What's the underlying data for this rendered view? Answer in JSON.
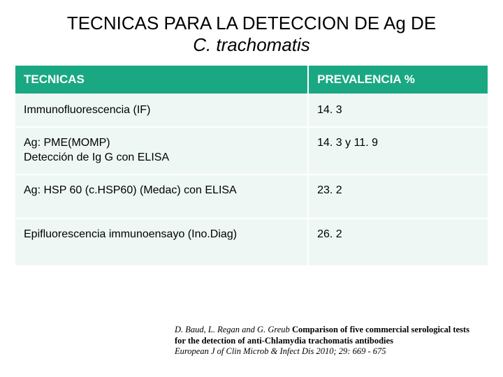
{
  "title_line1": "TECNICAS PARA LA DETECCION DE Ag DE",
  "title_line2": "C. trachomatis",
  "table": {
    "columns": [
      "TECNICAS",
      "PREVALENCIA %"
    ],
    "col_widths_pct": [
      62,
      38
    ],
    "header_bg": "#1aa883",
    "header_text": "#ffffff",
    "cell_bg": "#eef7f4",
    "cell_text": "#000000",
    "border_color": "#ffffff",
    "header_fontsize": 17,
    "cell_fontsize": 16,
    "rows": [
      {
        "tecnica": "Immunofluorescencia (IF)",
        "prevalencia": "14. 3"
      },
      {
        "tecnica": "Ag: PME(MOMP)\nDetección de Ig G con  ELISA",
        "prevalencia": "14. 3  y 11. 9"
      },
      {
        "tecnica": "Ag: HSP 60 (c.HSP60) (Medac) con ELISA",
        "prevalencia": "23. 2"
      },
      {
        "tecnica": "Epifluorescencia immunoensayo (Ino.Diag)",
        "prevalencia": "26. 2"
      }
    ]
  },
  "citation": {
    "authors": "D. Baud, L. Regan and G. Greub ",
    "title_bold": "Comparison of five commercial serological tests for the detection of anti-Chlamydia trachomatis antibodies",
    "journal_ital": "European J of Clin Microb & Infect Dis 2010; 29: 669 - 675",
    "font_family": "Garamond",
    "fontsize": 12.5
  },
  "background_color": "#ffffff"
}
